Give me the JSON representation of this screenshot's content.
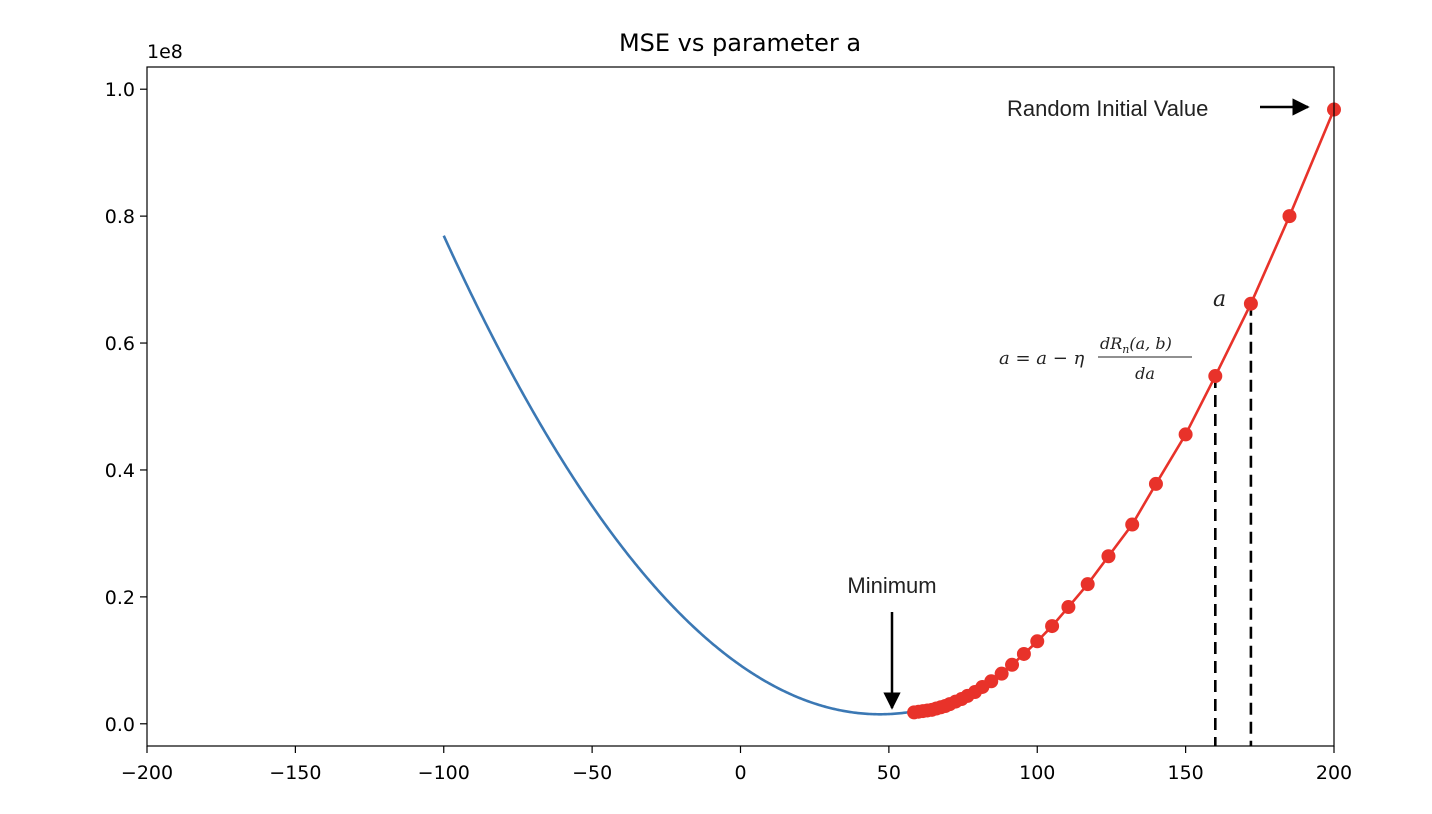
{
  "chart_data": {
    "type": "line",
    "title": "MSE vs parameter a",
    "xlabel": "",
    "ylabel": "",
    "y_offset_label": "1e8",
    "xlim": [
      -200,
      200
    ],
    "ylim": [
      -0.035,
      1.035
    ],
    "xticks": [
      -200,
      -150,
      -100,
      -50,
      0,
      50,
      100,
      150,
      200
    ],
    "xtick_labels": [
      "−200",
      "−150",
      "−100",
      "−50",
      "0",
      "50",
      "100",
      "150",
      "200"
    ],
    "yticks": [
      0.0,
      0.2,
      0.4,
      0.6,
      0.8,
      1.0
    ],
    "ytick_labels": [
      "0.0",
      "0.2",
      "0.4",
      "0.6",
      "0.8",
      "1.0"
    ],
    "grid": false,
    "series": [
      {
        "kind": "curve",
        "color": "#3b78b4",
        "curve": {
          "a_min": 47,
          "y_min": 0.015,
          "k": 3.49e-05
        },
        "x_range": [
          -100,
          57
        ]
      },
      {
        "kind": "steps",
        "color": "#e8322a",
        "x": [
          200,
          185,
          172,
          160,
          150,
          140,
          132,
          124,
          117,
          110.5,
          105,
          100,
          95.5,
          91.5,
          88,
          84.5,
          81.5,
          79,
          76.5,
          74.5,
          72.5,
          70.5,
          69,
          67.5,
          66,
          64.5,
          63,
          61.5,
          60,
          58.5
        ],
        "y": [
          0.968,
          0.8,
          0.662,
          0.548,
          0.456,
          0.378,
          0.314,
          0.264,
          0.22,
          0.184,
          0.154,
          0.13,
          0.11,
          0.093,
          0.079,
          0.067,
          0.058,
          0.05,
          0.044,
          0.039,
          0.035,
          0.031,
          0.028,
          0.026,
          0.024,
          0.022,
          0.021,
          0.02,
          0.019,
          0.018
        ]
      }
    ],
    "annotations": [
      {
        "text": "Random Initial Value",
        "arrow": "right"
      },
      {
        "text": "Minimum",
        "arrow": "down"
      },
      {
        "text": "a",
        "kind": "math-label"
      }
    ],
    "formula": {
      "lhs": "a = a − η",
      "numerator": "dR",
      "numerator_sub": "n",
      "numerator_tail": "(a, b)",
      "denominator": "da"
    },
    "dashed_markers_x": [
      160,
      172
    ]
  }
}
